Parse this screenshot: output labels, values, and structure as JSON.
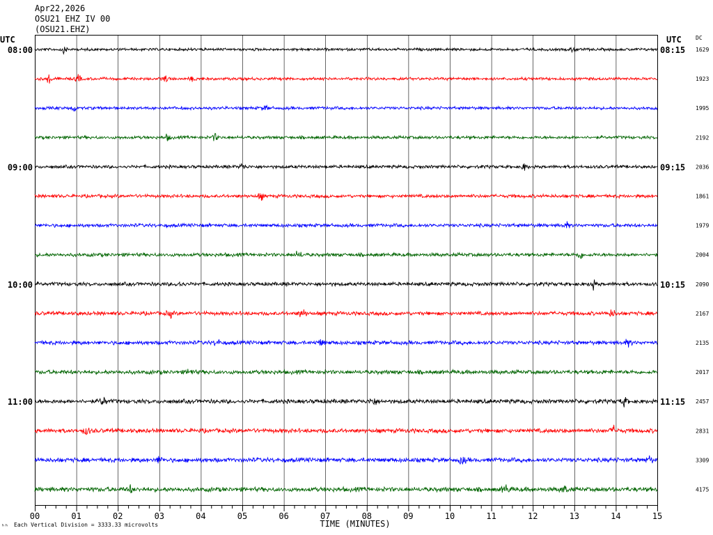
{
  "header": {
    "date": "Apr22,2026",
    "station_line": "OSU21 EHZ IV 00",
    "channel_code": "(OSU21.EHZ)"
  },
  "left_axis_title": "UTC",
  "right_axis_title": "UTC",
  "dc_header": "DC",
  "footer_note": "Each Vertical Division = 3333.33 microvolts",
  "footer_mark": "ʰʰ",
  "colors": {
    "black": "#000000",
    "red": "#ff0000",
    "blue": "#0000ff",
    "green": "#006400",
    "grid": "#000000"
  },
  "chart_data": {
    "type": "line",
    "subtype": "helicorder",
    "xlabel": "TIME (MINUTES)",
    "x_ticks": [
      "00",
      "01",
      "02",
      "03",
      "04",
      "05",
      "06",
      "07",
      "08",
      "09",
      "10",
      "11",
      "12",
      "13",
      "14",
      "15"
    ],
    "xlim": [
      0,
      15
    ],
    "row_color_cycle": [
      "black",
      "red",
      "blue",
      "green"
    ],
    "rows": [
      {
        "left": "08:00",
        "right": "08:15",
        "dc": "1629",
        "color": "black",
        "events": [
          [
            0.7,
            2.2
          ],
          [
            13.0,
            2.0
          ]
        ]
      },
      {
        "left": "",
        "right": "",
        "dc": "1923",
        "color": "red",
        "events": [
          [
            0.35,
            2.6
          ],
          [
            1.05,
            2.0
          ],
          [
            3.15,
            2.4
          ],
          [
            3.8,
            1.5
          ]
        ]
      },
      {
        "left": "",
        "right": "",
        "dc": "1995",
        "color": "blue",
        "events": [
          [
            0.95,
            1.8
          ],
          [
            5.55,
            1.5
          ]
        ]
      },
      {
        "left": "",
        "right": "",
        "dc": "2192",
        "color": "green",
        "events": [
          [
            3.2,
            1.6
          ],
          [
            4.35,
            2.2
          ]
        ]
      },
      {
        "left": "09:00",
        "right": "09:15",
        "dc": "2036",
        "color": "black",
        "events": [
          [
            5.0,
            1.5
          ],
          [
            11.8,
            1.8
          ]
        ]
      },
      {
        "left": "",
        "right": "",
        "dc": "1861",
        "color": "red",
        "events": [
          [
            5.45,
            1.8
          ]
        ]
      },
      {
        "left": "",
        "right": "",
        "dc": "1979",
        "color": "blue",
        "events": [
          [
            12.8,
            1.6
          ]
        ]
      },
      {
        "left": "",
        "right": "",
        "dc": "2004",
        "color": "green",
        "events": [
          [
            6.35,
            1.8
          ],
          [
            13.15,
            2.0
          ]
        ]
      },
      {
        "left": "10:00",
        "right": "10:15",
        "dc": "2090",
        "color": "black",
        "events": [
          [
            3.5,
            1.8
          ],
          [
            13.45,
            2.4
          ]
        ]
      },
      {
        "left": "",
        "right": "",
        "dc": "2167",
        "color": "red",
        "events": [
          [
            3.25,
            1.8
          ],
          [
            6.45,
            2.2
          ],
          [
            13.9,
            1.8
          ]
        ]
      },
      {
        "left": "",
        "right": "",
        "dc": "2135",
        "color": "blue",
        "events": [
          [
            4.4,
            1.5
          ],
          [
            6.9,
            1.4
          ],
          [
            14.3,
            1.4
          ]
        ]
      },
      {
        "left": "",
        "right": "",
        "dc": "2017",
        "color": "green",
        "events": [
          [
            3.75,
            1.8
          ]
        ]
      },
      {
        "left": "11:00",
        "right": "11:15",
        "dc": "2457",
        "color": "black",
        "events": [
          [
            1.65,
            2.2
          ],
          [
            8.15,
            2.0
          ],
          [
            14.2,
            2.0
          ]
        ]
      },
      {
        "left": "",
        "right": "",
        "dc": "2831",
        "color": "red",
        "events": [
          [
            1.25,
            1.6
          ],
          [
            13.95,
            1.6
          ]
        ]
      },
      {
        "left": "",
        "right": "",
        "dc": "3309",
        "color": "blue",
        "events": [
          [
            3.0,
            1.5
          ],
          [
            10.3,
            1.6
          ],
          [
            14.8,
            1.4
          ]
        ]
      },
      {
        "left": "",
        "right": "",
        "dc": "4175",
        "color": "green",
        "events": [
          [
            2.3,
            1.5
          ],
          [
            11.35,
            1.8
          ],
          [
            12.75,
            1.6
          ]
        ]
      }
    ]
  }
}
